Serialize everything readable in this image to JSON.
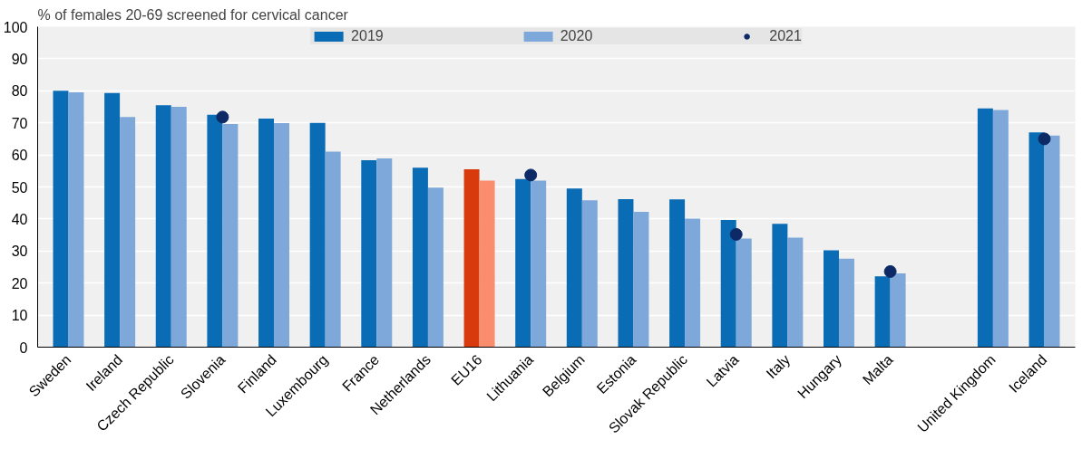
{
  "chart_data": {
    "type": "bar",
    "ylabel": "% of females 20-69 screened for cervical cancer",
    "categories": [
      "Sweden",
      "Ireland",
      "Czech Republic",
      "Slovenia",
      "Finland",
      "Luxembourg",
      "France",
      "Netherlands",
      "EU16",
      "Lithuania",
      "Belgium",
      "Estonia",
      "Slovak Republic",
      "Latvia",
      "Italy",
      "Hungary",
      "Malta",
      null,
      "United Kingdom",
      "Iceland"
    ],
    "series": [
      {
        "name": "2019",
        "colors": [
          "#0b6cb6",
          "#0b6cb6",
          "#0b6cb6",
          "#0b6cb6",
          "#0b6cb6",
          "#0b6cb6",
          "#0b6cb6",
          "#0b6cb6",
          "#d83a0e",
          "#0b6cb6",
          "#0b6cb6",
          "#0b6cb6",
          "#0b6cb6",
          "#0b6cb6",
          "#0b6cb6",
          "#0b6cb6",
          "#0b6cb6",
          "#0b6cb6",
          "#0b6cb6",
          "#0b6cb6"
        ],
        "values": [
          80,
          79.3,
          75.5,
          72.5,
          71.3,
          70,
          58.3,
          56,
          55.5,
          52.5,
          49.5,
          46.2,
          46.1,
          39.7,
          38.5,
          30.2,
          22.1,
          null,
          74.5,
          67
        ]
      },
      {
        "name": "2020",
        "colors": [
          "#7fa8da",
          "#7fa8da",
          "#7fa8da",
          "#7fa8da",
          "#7fa8da",
          "#7fa8da",
          "#7fa8da",
          "#7fa8da",
          "#fa8d6e",
          "#7fa8da",
          "#7fa8da",
          "#7fa8da",
          "#7fa8da",
          "#7fa8da",
          "#7fa8da",
          "#7fa8da",
          "#7fa8da",
          "#7fa8da",
          "#7fa8da",
          "#7fa8da"
        ],
        "values": [
          79.5,
          71.8,
          75,
          69.6,
          69.9,
          61,
          58.9,
          49.8,
          52,
          52,
          45.8,
          42.2,
          40.1,
          33.9,
          34.2,
          27.6,
          23,
          null,
          74,
          66
        ]
      },
      {
        "name": "2021",
        "type": "scatter",
        "marker": "circle",
        "color": "#0d2a66",
        "values": [
          null,
          null,
          null,
          71.8,
          null,
          null,
          null,
          null,
          null,
          53.7,
          null,
          null,
          null,
          35.2,
          null,
          null,
          23.6,
          null,
          null,
          65
        ]
      }
    ],
    "ylim": [
      0,
      100
    ],
    "yticks": [
      0,
      10,
      20,
      30,
      40,
      50,
      60,
      70,
      80,
      90,
      100
    ],
    "grid": "y",
    "legend": "top"
  }
}
